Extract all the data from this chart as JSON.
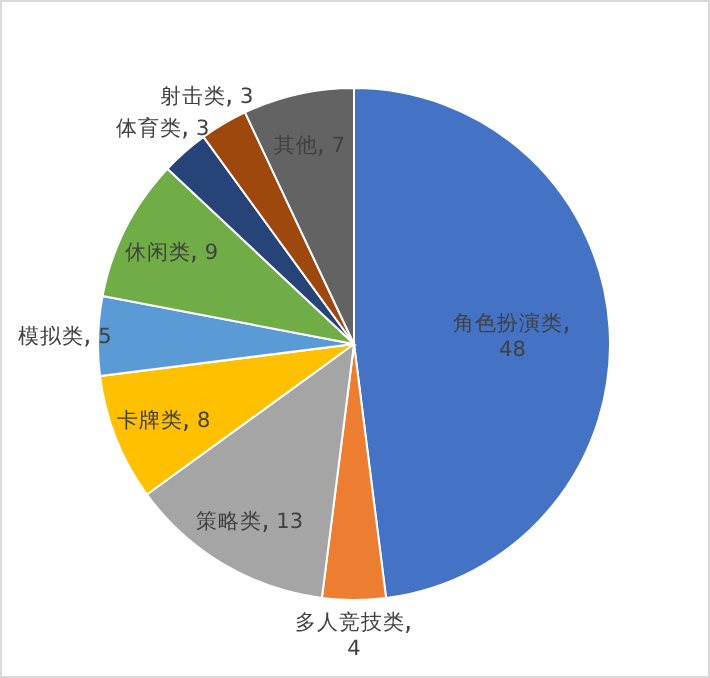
{
  "chart_data": {
    "type": "pie",
    "categories": [
      "角色扮演类",
      "多人竞技类",
      "策略类",
      "卡牌类",
      "模拟类",
      "休闲类",
      "体育类",
      "射击类",
      "其他"
    ],
    "values": [
      48,
      4,
      13,
      8,
      5,
      9,
      3,
      3,
      7
    ],
    "colors": [
      "#4472c4",
      "#ed7d31",
      "#a5a5a5",
      "#ffc000",
      "#5b9bd5",
      "#70ad47",
      "#264478",
      "#9e480e",
      "#636363"
    ],
    "data_labels": true
  }
}
